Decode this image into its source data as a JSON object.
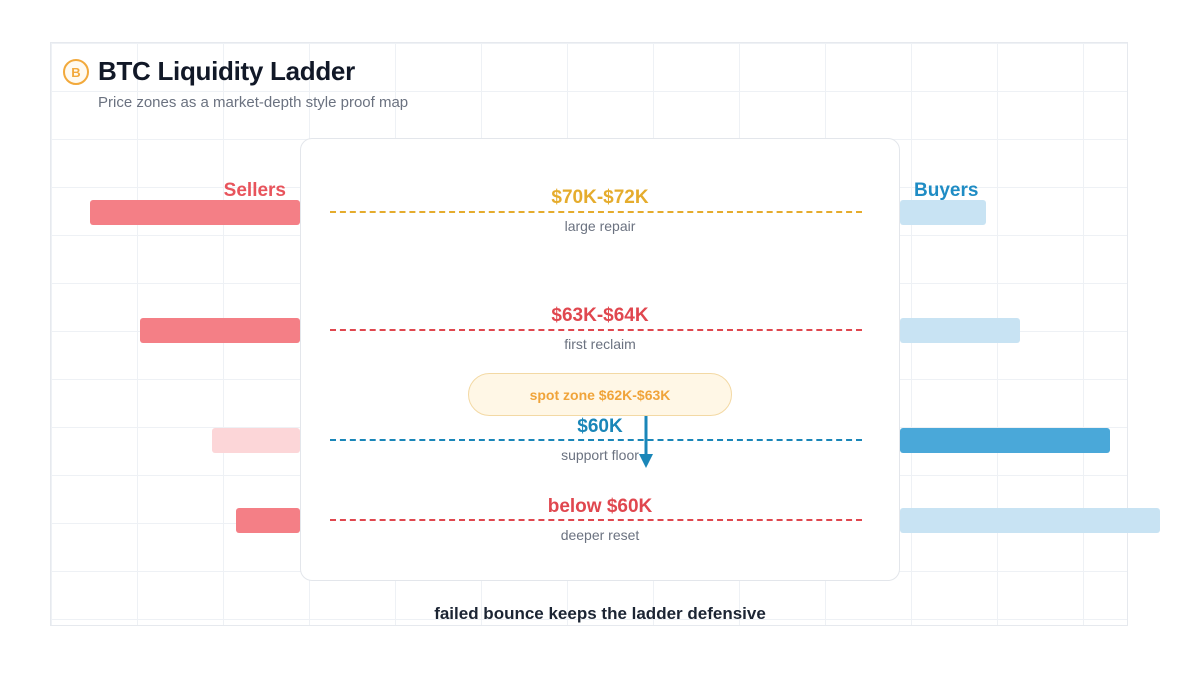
{
  "header": {
    "logo_letter": "B",
    "title": "BTC Liquidity Ladder",
    "subtitle": "Price zones as a market-depth style proof map"
  },
  "labels": {
    "sellers": "Sellers",
    "buyers": "Buyers"
  },
  "zones": [
    {
      "price": "$70K-$72K",
      "note": "large repair",
      "color": "#e5ac2d",
      "seller_depth": 210,
      "buyer_depth": 86,
      "seller_color": "#f47f86",
      "buyer_color": "#c8e3f3"
    },
    {
      "price": "$63K-$64K",
      "note": "first reclaim",
      "color": "#e0474f",
      "seller_depth": 160,
      "buyer_depth": 120,
      "seller_color": "#f47f86",
      "buyer_color": "#c8e3f3"
    },
    {
      "price": "$60K",
      "note": "support floor",
      "color": "#1a86b8",
      "seller_depth": 88,
      "buyer_depth": 210,
      "seller_color": "#fcd6d8",
      "buyer_color": "#4aa8d9"
    },
    {
      "price": "below $60K",
      "note": "deeper reset",
      "color": "#e0474f",
      "seller_depth": 64,
      "buyer_depth": 260,
      "seller_color": "#f47f86",
      "buyer_color": "#c8e3f3"
    }
  ],
  "spot": {
    "label": "spot zone $62K-$63K",
    "color": "#f0a43a"
  },
  "caption": "failed bounce keeps the ladder defensive",
  "colors": {
    "sellers": "#e8545c",
    "buyers": "#1f8cc4",
    "arrow": "#1a86b8"
  }
}
